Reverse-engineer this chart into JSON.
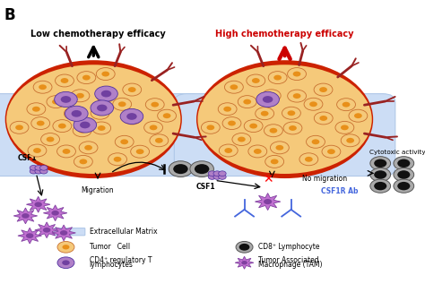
{
  "bg_color": "#ffffff",
  "title_left": "Low chemotherapy efficacy",
  "title_right": "High chemotherapy efficacy",
  "title_left_color": "#000000",
  "title_right_color": "#cc0000",
  "panel_label": "B",
  "lcx": 0.22,
  "lcy": 0.58,
  "rcx": 0.67,
  "rcy": 0.58,
  "tumor_R": 0.2,
  "csf1_label_left": "CSF1",
  "csf1_label_right": "CSF1",
  "migration_label": "Migration",
  "no_migration_label": "No migration",
  "csf1r_ab_label": "CSF1R Ab",
  "cytotoxic_label": "Cytotoxic activity",
  "tumor_outer": "#f5c97a",
  "tumor_inner": "#e8901a",
  "tumor_border": "#c87030",
  "ecm_color": "#ccddf5",
  "ecm_edge": "#b0c8e8",
  "red_border": "#cc2200",
  "vessel_color": "#992222",
  "purple_outer": "#b080c8",
  "purple_inner": "#7040a0",
  "purple_edge": "#5030a0",
  "lymph_outer": "#aaaaaa",
  "lymph_inner": "#111111",
  "lymph_edge": "#555555",
  "tam_color": "#c070d0",
  "tam_edge": "#8040a0",
  "ab_color": "#4466dd"
}
